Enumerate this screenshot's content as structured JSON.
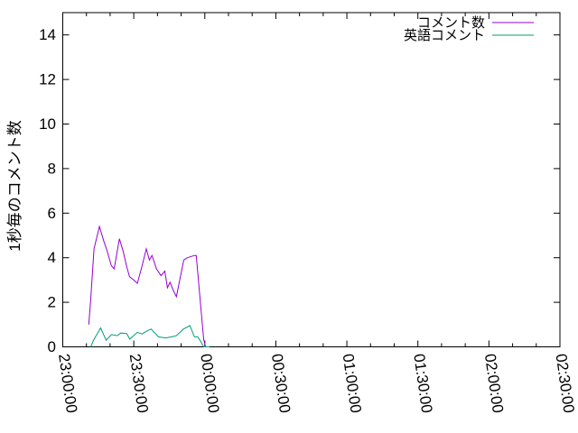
{
  "figure": {
    "background": "#ffffff",
    "foreground": "#000000"
  },
  "chart_data": {
    "type": "line",
    "title": "",
    "xlabel": "",
    "ylabel": "1秒毎のコメント数",
    "grid": false,
    "legend_position": "top-right-inside",
    "x_axis": {
      "kind": "time",
      "tick_labels": [
        "23:00:00",
        "23:30:00",
        "00:00:00",
        "00:30:00",
        "01:00:00",
        "01:30:00",
        "02:00:00",
        "02:30:00"
      ],
      "tick_minutes": [
        0,
        30,
        60,
        90,
        120,
        150,
        180,
        210
      ],
      "minor_tick_minutes": 10,
      "range_minutes": [
        0,
        210
      ],
      "label_rotation_deg": 82
    },
    "y_axis": {
      "ticks": [
        0,
        2,
        4,
        6,
        8,
        10,
        12,
        14
      ],
      "range": [
        0,
        15
      ]
    },
    "series": [
      {
        "name": "コメント数",
        "color": "#9400d3",
        "points": [
          [
            11,
            1.0
          ],
          [
            11.8,
            2.1
          ],
          [
            13.2,
            4.4
          ],
          [
            15.5,
            5.4
          ],
          [
            17.3,
            4.75
          ],
          [
            18.6,
            4.35
          ],
          [
            20.5,
            3.65
          ],
          [
            21.7,
            3.5
          ],
          [
            23.9,
            4.85
          ],
          [
            25.5,
            4.3
          ],
          [
            27,
            3.6
          ],
          [
            28.2,
            3.15
          ],
          [
            30,
            3.0
          ],
          [
            31.5,
            2.85
          ],
          [
            33.4,
            3.6
          ],
          [
            35.3,
            4.4
          ],
          [
            36.6,
            3.9
          ],
          [
            37.7,
            4.1
          ],
          [
            39.6,
            3.5
          ],
          [
            41.5,
            3.2
          ],
          [
            43.1,
            3.4
          ],
          [
            44.2,
            2.65
          ],
          [
            45.3,
            2.9
          ],
          [
            46.6,
            2.55
          ],
          [
            48,
            2.25
          ],
          [
            51.1,
            3.9
          ],
          [
            52.6,
            4.0
          ],
          [
            55.6,
            4.1
          ],
          [
            56.4,
            4.1
          ],
          [
            58.3,
            1.8
          ],
          [
            59.5,
            0.35
          ],
          [
            60.3,
            0.0
          ],
          [
            62,
            0.0
          ]
        ]
      },
      {
        "name": "英語コメント",
        "color": "#009e73",
        "points": [
          [
            11.8,
            0.0
          ],
          [
            13,
            0.3
          ],
          [
            16,
            0.85
          ],
          [
            18.3,
            0.3
          ],
          [
            20.6,
            0.55
          ],
          [
            23,
            0.5
          ],
          [
            24.4,
            0.62
          ],
          [
            27,
            0.6
          ],
          [
            28.3,
            0.35
          ],
          [
            31.5,
            0.65
          ],
          [
            33.5,
            0.58
          ],
          [
            35,
            0.68
          ],
          [
            37.3,
            0.8
          ],
          [
            40.4,
            0.45
          ],
          [
            43.4,
            0.4
          ],
          [
            46.1,
            0.45
          ],
          [
            48,
            0.5
          ],
          [
            51,
            0.8
          ],
          [
            53.7,
            0.95
          ],
          [
            55.6,
            0.45
          ],
          [
            57,
            0.45
          ],
          [
            58.5,
            0.2
          ],
          [
            59.5,
            0.0
          ],
          [
            62,
            0.0
          ]
        ]
      }
    ]
  }
}
